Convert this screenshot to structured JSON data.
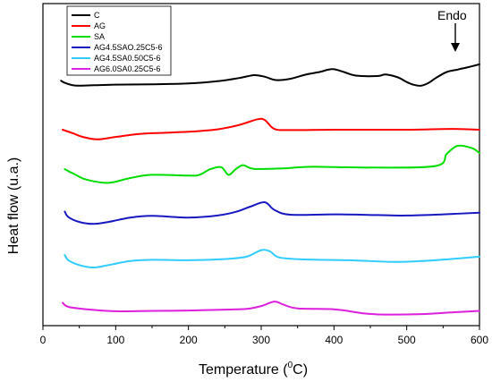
{
  "chart_data": {
    "type": "line",
    "xlabel": "Temperature (",
    "xlabel_sup": "0",
    "xlabel_suffix": "C)",
    "ylabel": "Heat flow (u.a.)",
    "xlim": [
      0,
      600
    ],
    "x_ticks": [
      0,
      100,
      200,
      300,
      400,
      500,
      600
    ],
    "y_ticks_labeled": false,
    "legend_position": "top-left",
    "annotation": {
      "text": "Endo",
      "arrow": "down",
      "x": 570
    },
    "series": [
      {
        "name": "C",
        "color": "#000000",
        "points": [
          [
            25,
            0.85
          ],
          [
            30,
            0.6
          ],
          [
            40,
            0.32
          ],
          [
            50,
            0.25
          ],
          [
            70,
            0.3
          ],
          [
            100,
            0.38
          ],
          [
            150,
            0.42
          ],
          [
            200,
            0.52
          ],
          [
            240,
            0.8
          ],
          [
            270,
            1.2
          ],
          [
            290,
            1.55
          ],
          [
            305,
            1.35
          ],
          [
            320,
            0.95
          ],
          [
            340,
            1.1
          ],
          [
            360,
            1.6
          ],
          [
            380,
            1.95
          ],
          [
            398,
            2.3
          ],
          [
            415,
            1.9
          ],
          [
            430,
            1.5
          ],
          [
            460,
            1.45
          ],
          [
            470,
            1.65
          ],
          [
            480,
            1.5
          ],
          [
            490,
            1.2
          ],
          [
            500,
            0.7
          ],
          [
            510,
            0.35
          ],
          [
            520,
            0.25
          ],
          [
            530,
            0.6
          ],
          [
            540,
            1.2
          ],
          [
            555,
            1.95
          ],
          [
            570,
            2.25
          ],
          [
            585,
            2.55
          ],
          [
            600,
            2.9
          ]
        ]
      },
      {
        "name": "AG",
        "color": "#ff0000",
        "points": [
          [
            27,
            0.0
          ],
          [
            40,
            -0.4
          ],
          [
            55,
            -0.9
          ],
          [
            75,
            -1.2
          ],
          [
            100,
            -0.9
          ],
          [
            130,
            -0.55
          ],
          [
            160,
            -0.4
          ],
          [
            200,
            -0.25
          ],
          [
            240,
            0.05
          ],
          [
            270,
            0.6
          ],
          [
            295,
            1.3
          ],
          [
            305,
            1.2
          ],
          [
            318,
            0.1
          ],
          [
            340,
            -0.05
          ],
          [
            400,
            0.0
          ],
          [
            500,
            0.0
          ],
          [
            560,
            0.1
          ],
          [
            600,
            0.0
          ]
        ]
      },
      {
        "name": "SA",
        "color": "#00dd00",
        "points": [
          [
            30,
            0.1
          ],
          [
            45,
            -0.6
          ],
          [
            60,
            -1.2
          ],
          [
            90,
            -1.6
          ],
          [
            120,
            -1.0
          ],
          [
            150,
            -0.6
          ],
          [
            200,
            -0.7
          ],
          [
            215,
            -0.6
          ],
          [
            230,
            0.1
          ],
          [
            245,
            0.35
          ],
          [
            255,
            -0.6
          ],
          [
            265,
            0.1
          ],
          [
            275,
            0.6
          ],
          [
            290,
            0.15
          ],
          [
            330,
            0.2
          ],
          [
            370,
            0.4
          ],
          [
            450,
            0.3
          ],
          [
            540,
            0.5
          ],
          [
            555,
            2.0
          ],
          [
            570,
            3.0
          ],
          [
            590,
            2.7
          ],
          [
            600,
            2.1
          ]
        ]
      },
      {
        "name": "AG4.5SAO.25C5-6",
        "color": "#1818c0",
        "points": [
          [
            30,
            0.4
          ],
          [
            35,
            -0.3
          ],
          [
            50,
            -0.9
          ],
          [
            70,
            -1.15
          ],
          [
            90,
            -0.9
          ],
          [
            120,
            -0.35
          ],
          [
            150,
            -0.15
          ],
          [
            200,
            -0.35
          ],
          [
            240,
            -0.1
          ],
          [
            265,
            0.35
          ],
          [
            285,
            1.0
          ],
          [
            305,
            1.55
          ],
          [
            318,
            0.6
          ],
          [
            340,
            0.0
          ],
          [
            400,
            0.05
          ],
          [
            460,
            -0.05
          ],
          [
            500,
            -0.1
          ],
          [
            550,
            0.05
          ],
          [
            600,
            0.25
          ]
        ]
      },
      {
        "name": "AG4.5SA0.50C5-6",
        "color": "#33ccff",
        "points": [
          [
            30,
            0.55
          ],
          [
            35,
            -0.1
          ],
          [
            50,
            -0.7
          ],
          [
            70,
            -1.0
          ],
          [
            90,
            -0.7
          ],
          [
            120,
            -0.2
          ],
          [
            150,
            -0.05
          ],
          [
            200,
            -0.1
          ],
          [
            250,
            0.05
          ],
          [
            280,
            0.35
          ],
          [
            300,
            1.15
          ],
          [
            312,
            1.0
          ],
          [
            325,
            0.25
          ],
          [
            360,
            0.0
          ],
          [
            420,
            -0.1
          ],
          [
            480,
            -0.3
          ],
          [
            520,
            -0.2
          ],
          [
            560,
            0.05
          ],
          [
            600,
            0.35
          ]
        ]
      },
      {
        "name": "AG6.0SA0.25C5-6",
        "color": "#dd22dd",
        "points": [
          [
            27,
            0.5
          ],
          [
            35,
            0.0
          ],
          [
            60,
            -0.3
          ],
          [
            100,
            -0.55
          ],
          [
            150,
            -0.5
          ],
          [
            200,
            -0.45
          ],
          [
            250,
            -0.35
          ],
          [
            280,
            -0.25
          ],
          [
            300,
            0.1
          ],
          [
            318,
            0.65
          ],
          [
            330,
            0.3
          ],
          [
            350,
            -0.2
          ],
          [
            400,
            -0.3
          ],
          [
            440,
            -0.8
          ],
          [
            470,
            -0.95
          ],
          [
            520,
            -0.9
          ],
          [
            560,
            -0.7
          ],
          [
            600,
            -0.5
          ]
        ]
      }
    ]
  }
}
